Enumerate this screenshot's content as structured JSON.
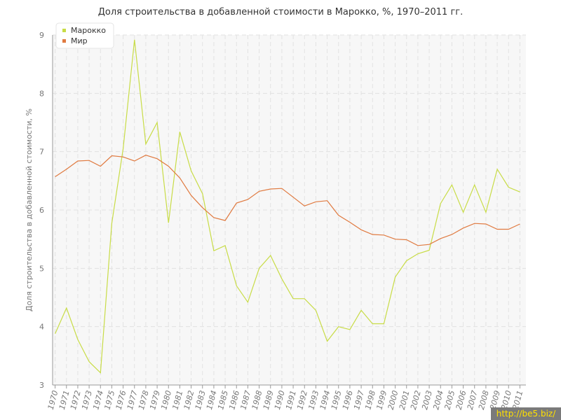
{
  "watermark": "http://be5.biz/",
  "chart_data": {
    "type": "line",
    "title": "Доля строительства в добавленной стоимости в Марокко, %, 1970–2011 гг.",
    "xlabel": "",
    "ylabel": "Доля строительства в добавленной стоимости, %",
    "ylim": [
      3,
      9
    ],
    "yticks": [
      3,
      4,
      5,
      6,
      7,
      8,
      9
    ],
    "grid": true,
    "legend_position": "top-left",
    "x": [
      1970,
      1971,
      1972,
      1973,
      1974,
      1975,
      1976,
      1977,
      1978,
      1979,
      1980,
      1981,
      1982,
      1983,
      1984,
      1985,
      1986,
      1987,
      1988,
      1989,
      1990,
      1991,
      1992,
      1993,
      1994,
      1995,
      1996,
      1997,
      1998,
      1999,
      2000,
      2001,
      2002,
      2003,
      2004,
      2005,
      2006,
      2007,
      2008,
      2009,
      2010,
      2011
    ],
    "series": [
      {
        "name": "Марокко",
        "color": "#c8dc46",
        "values": [
          3.88,
          4.32,
          3.78,
          3.4,
          3.21,
          5.77,
          7.05,
          8.92,
          7.13,
          7.5,
          5.78,
          7.34,
          6.67,
          6.28,
          5.3,
          5.39,
          4.7,
          4.42,
          5.0,
          5.22,
          4.82,
          4.48,
          4.48,
          4.28,
          3.75,
          4.0,
          3.95,
          4.28,
          4.05,
          4.05,
          4.85,
          5.13,
          5.25,
          5.31,
          6.11,
          6.43,
          5.96,
          6.43,
          5.96,
          6.7,
          6.39,
          6.31
        ]
      },
      {
        "name": "Мир",
        "color": "#e07a40",
        "values": [
          6.57,
          6.7,
          6.84,
          6.85,
          6.75,
          6.93,
          6.91,
          6.84,
          6.94,
          6.88,
          6.75,
          6.55,
          6.25,
          6.04,
          5.87,
          5.82,
          6.12,
          6.18,
          6.32,
          6.36,
          6.37,
          6.22,
          6.07,
          6.14,
          6.16,
          5.91,
          5.79,
          5.66,
          5.58,
          5.57,
          5.5,
          5.49,
          5.39,
          5.41,
          5.51,
          5.58,
          5.69,
          5.77,
          5.76,
          5.67,
          5.67,
          5.76
        ]
      }
    ]
  }
}
